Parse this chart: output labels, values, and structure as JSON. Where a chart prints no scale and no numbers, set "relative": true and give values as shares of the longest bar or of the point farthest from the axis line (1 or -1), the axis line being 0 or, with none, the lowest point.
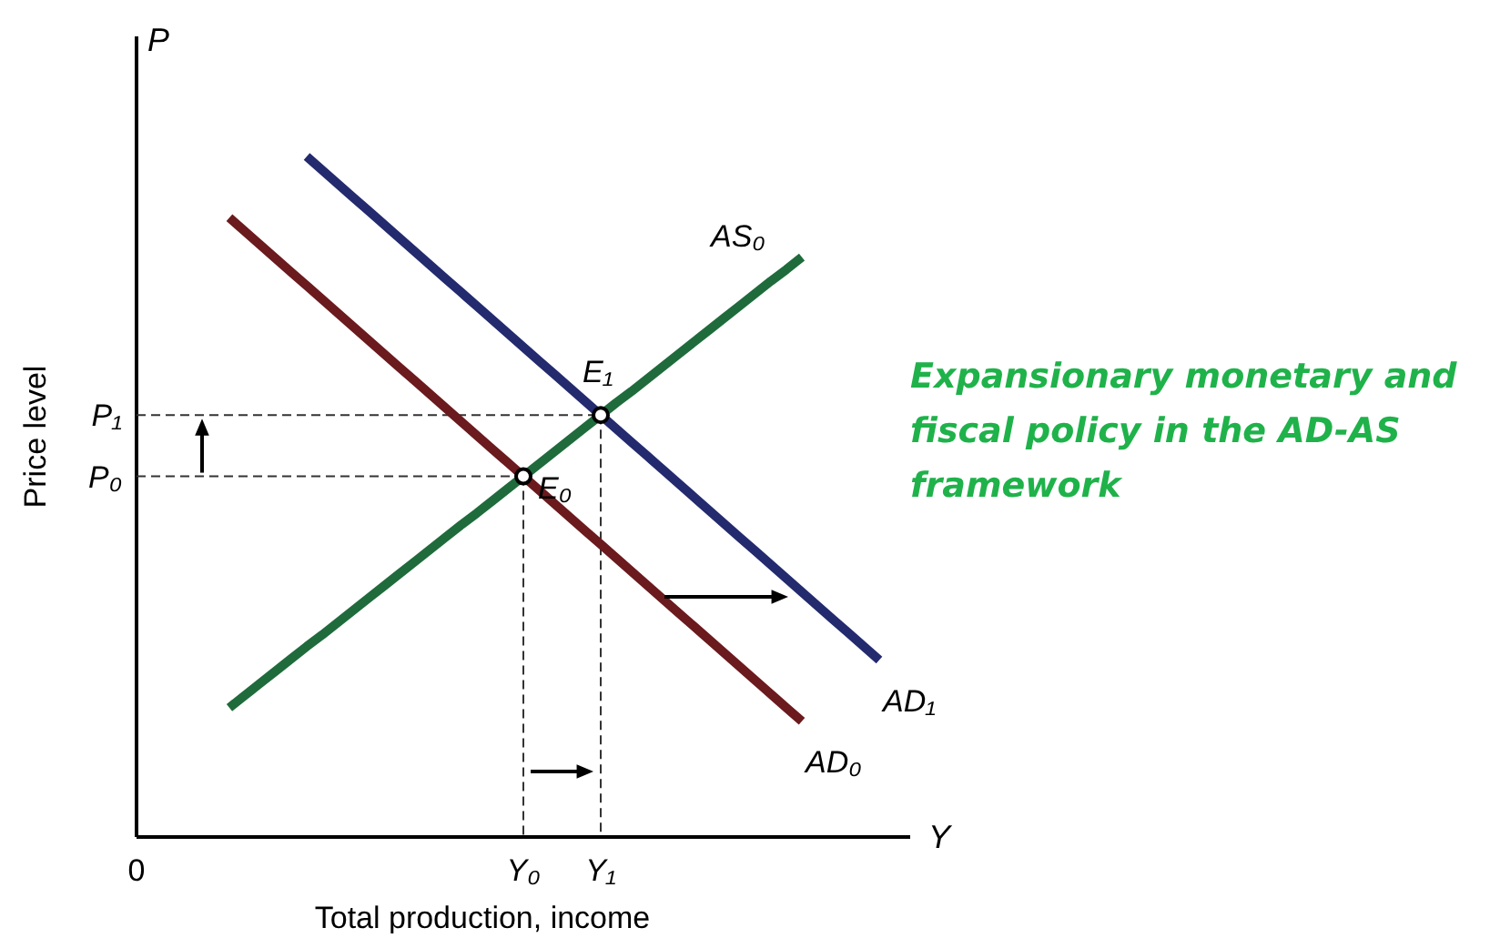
{
  "chart_data": {
    "type": "line",
    "title": "Expansionary monetary and fiscal policy in the AD-AS framework",
    "xlabel": "Total production, income",
    "ylabel": "Price level",
    "relative": true,
    "categories": [
      "0",
      null,
      null,
      null,
      null,
      null,
      null,
      null,
      null,
      null,
      null,
      null,
      null,
      null,
      null,
      null,
      null,
      null,
      null,
      null,
      null,
      null,
      null,
      null,
      null,
      "Y₀",
      null,
      null,
      null,
      null,
      "Y₁",
      null,
      null,
      null,
      null,
      null,
      null,
      null,
      null,
      null,
      null,
      null,
      null,
      null,
      null,
      null,
      null,
      null,
      null,
      null,
      null
    ],
    "series": [
      {
        "name": "AS₀",
        "color": "#1f6b3c",
        "values": [
          null,
          null,
          null,
          null,
          null,
          null,
          0.19,
          0.208,
          0.226,
          0.244,
          0.262,
          0.28,
          0.297,
          0.315,
          0.333,
          0.351,
          0.369,
          0.387,
          0.405,
          0.423,
          0.441,
          0.459,
          0.476,
          0.494,
          0.512,
          0.53,
          0.548,
          0.566,
          0.584,
          0.602,
          0.62,
          0.638,
          0.655,
          0.673,
          0.691,
          0.709,
          0.727,
          0.745,
          0.763,
          0.781,
          0.799,
          0.817,
          0.834,
          0.852,
          null,
          null,
          null,
          null,
          null,
          null,
          null
        ]
      },
      {
        "name": "AD₀",
        "color": "#6b1a1e",
        "values": [
          null,
          null,
          null,
          null,
          null,
          null,
          0.91,
          0.89,
          0.87,
          0.85,
          0.83,
          0.81,
          0.79,
          0.77,
          0.75,
          0.73,
          0.71,
          0.69,
          0.67,
          0.65,
          0.63,
          0.61,
          0.59,
          0.57,
          0.55,
          0.53,
          0.51,
          0.49,
          0.47,
          0.45,
          0.43,
          0.41,
          0.39,
          0.37,
          0.35,
          0.33,
          0.31,
          0.29,
          0.27,
          0.25,
          0.23,
          0.21,
          0.19,
          0.17,
          null,
          null,
          null,
          null,
          null,
          null,
          null
        ]
      },
      {
        "name": "AD₁",
        "color": "#232a6e",
        "values": [
          null,
          null,
          null,
          null,
          null,
          null,
          null,
          null,
          null,
          null,
          null,
          1,
          0.98,
          0.96,
          0.94,
          0.92,
          0.9,
          0.88,
          0.86,
          0.84,
          0.82,
          0.8,
          0.78,
          0.76,
          0.74,
          0.72,
          0.7,
          0.68,
          0.66,
          0.64,
          0.62,
          0.6,
          0.58,
          0.56,
          0.54,
          0.52,
          0.5,
          0.48,
          0.46,
          0.44,
          0.42,
          0.4,
          0.38,
          0.36,
          0.34,
          0.32,
          0.3,
          0.28,
          0.26,
          null,
          null
        ]
      }
    ],
    "ref_lines": [
      {
        "axis": "y",
        "value": 0.53,
        "label": "P₀",
        "line_style": "dashed"
      },
      {
        "axis": "y",
        "value": 0.62,
        "label": "P₁",
        "line_style": "dashed"
      }
    ],
    "annotations": [
      {
        "text": "E₀",
        "x": "Y₀",
        "y": 0.53
      },
      {
        "text": "E₁",
        "x": "Y₁",
        "y": 0.62
      },
      "P",
      "Y"
    ],
    "grid": false,
    "marker": "none",
    "line_style": "solid"
  }
}
